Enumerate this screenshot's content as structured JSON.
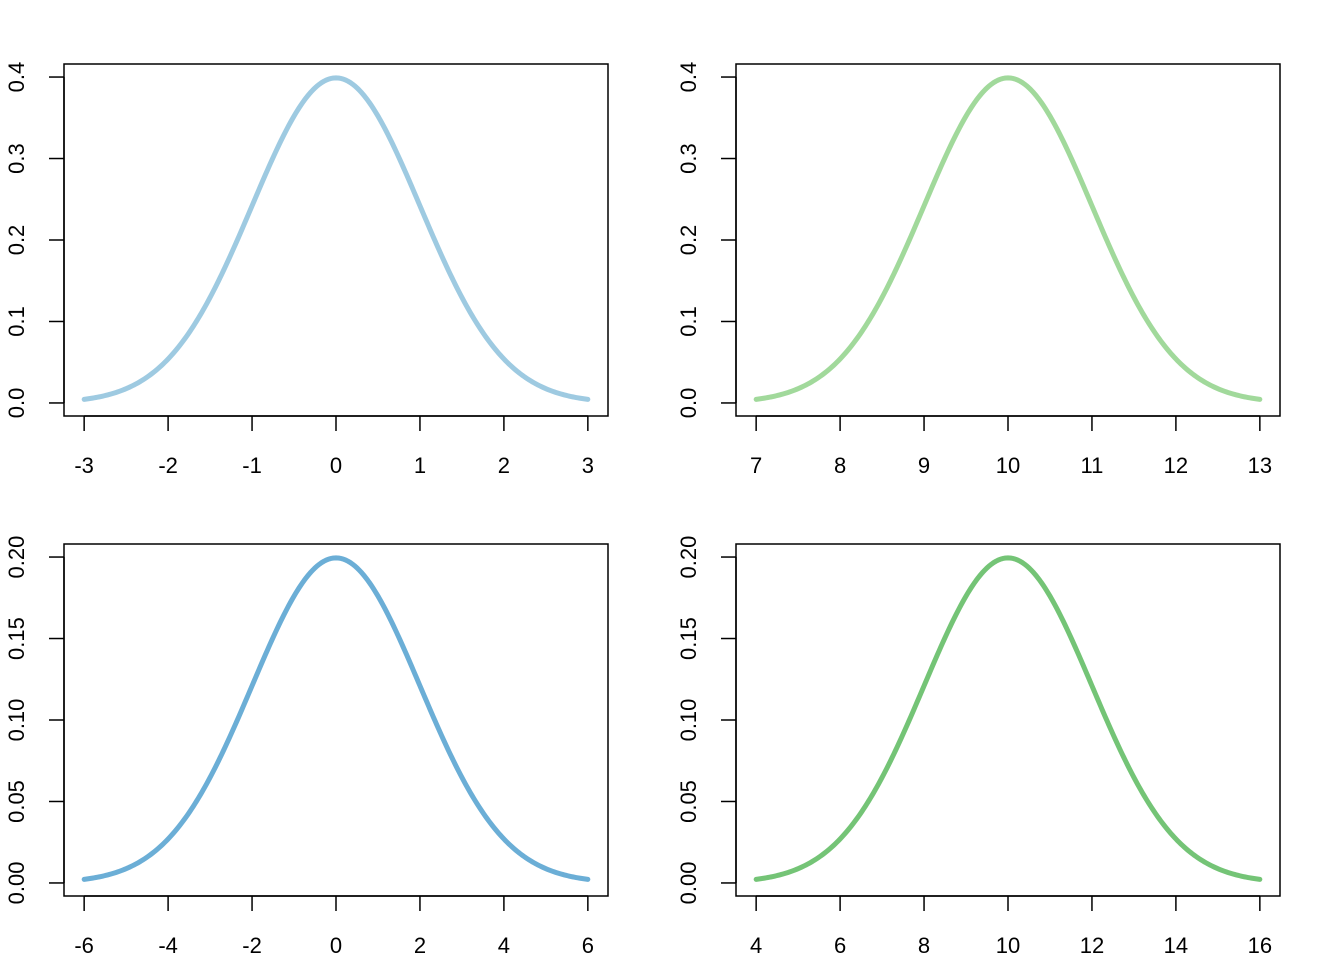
{
  "chart_data": [
    {
      "type": "line",
      "curve": "normal density",
      "mean": 0,
      "sd": 1,
      "xlim": [
        -3,
        3
      ],
      "ylim": [
        0,
        0.4
      ],
      "x_ticks": [
        "-3",
        "-2",
        "-1",
        "0",
        "1",
        "2",
        "3"
      ],
      "y_ticks": [
        "0.0",
        "0.1",
        "0.2",
        "0.3",
        "0.4"
      ],
      "color": "#9ecae1",
      "grid": false
    },
    {
      "type": "line",
      "curve": "normal density",
      "mean": 10,
      "sd": 1,
      "xlim": [
        7,
        13
      ],
      "ylim": [
        0,
        0.4
      ],
      "x_ticks": [
        "7",
        "8",
        "9",
        "10",
        "11",
        "12",
        "13"
      ],
      "y_ticks": [
        "0.0",
        "0.1",
        "0.2",
        "0.3",
        "0.4"
      ],
      "color": "#a1d99b",
      "grid": false
    },
    {
      "type": "line",
      "curve": "normal density",
      "mean": 0,
      "sd": 2,
      "xlim": [
        -6,
        6
      ],
      "ylim": [
        0,
        0.2
      ],
      "x_ticks": [
        "-6",
        "-4",
        "-2",
        "0",
        "2",
        "4",
        "6"
      ],
      "y_ticks": [
        "0.00",
        "0.05",
        "0.10",
        "0.15",
        "0.20"
      ],
      "color": "#6baed6",
      "grid": false
    },
    {
      "type": "line",
      "curve": "normal density",
      "mean": 10,
      "sd": 2,
      "xlim": [
        4,
        16
      ],
      "ylim": [
        0,
        0.2
      ],
      "x_ticks": [
        "4",
        "6",
        "8",
        "10",
        "12",
        "14",
        "16"
      ],
      "y_ticks": [
        "0.00",
        "0.05",
        "0.10",
        "0.15",
        "0.20"
      ],
      "color": "#74c476",
      "grid": false
    }
  ]
}
